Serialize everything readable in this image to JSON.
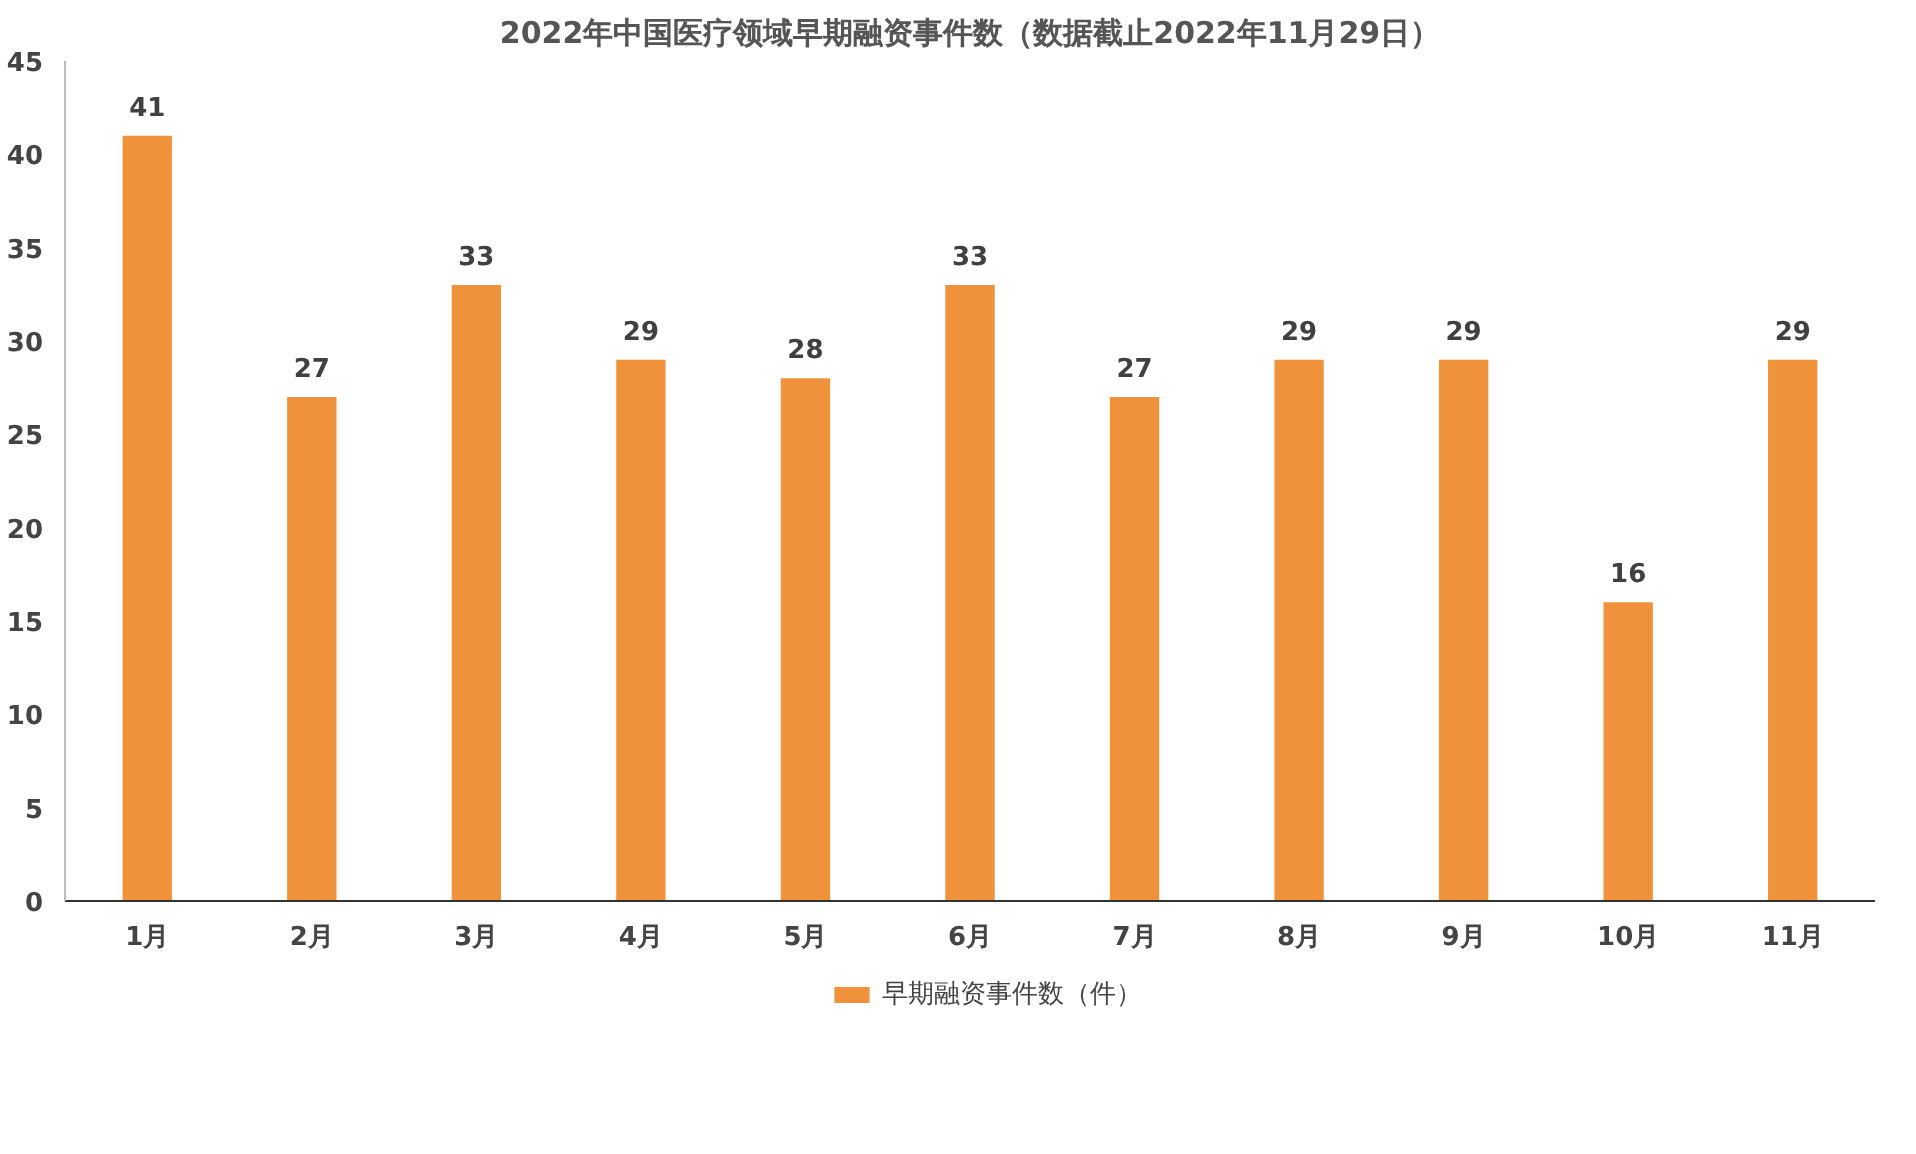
{
  "chart_data": {
    "type": "bar",
    "title": "2022年中国医疗领域早期融资事件数（数据截止2022年11月29日）",
    "categories": [
      "1月",
      "2月",
      "3月",
      "4月",
      "5月",
      "6月",
      "7月",
      "8月",
      "9月",
      "10月",
      "11月"
    ],
    "series": [
      {
        "name": "早期融资事件数（件）",
        "color": "#f0923b",
        "values": [
          41,
          27,
          33,
          29,
          28,
          33,
          27,
          29,
          29,
          16,
          29
        ]
      }
    ],
    "ylim": [
      0,
      45
    ],
    "yticks": [
      0,
      5,
      10,
      15,
      20,
      25,
      30,
      35,
      40,
      45
    ],
    "grid": false,
    "legend": "bottom",
    "data_labels": true
  }
}
